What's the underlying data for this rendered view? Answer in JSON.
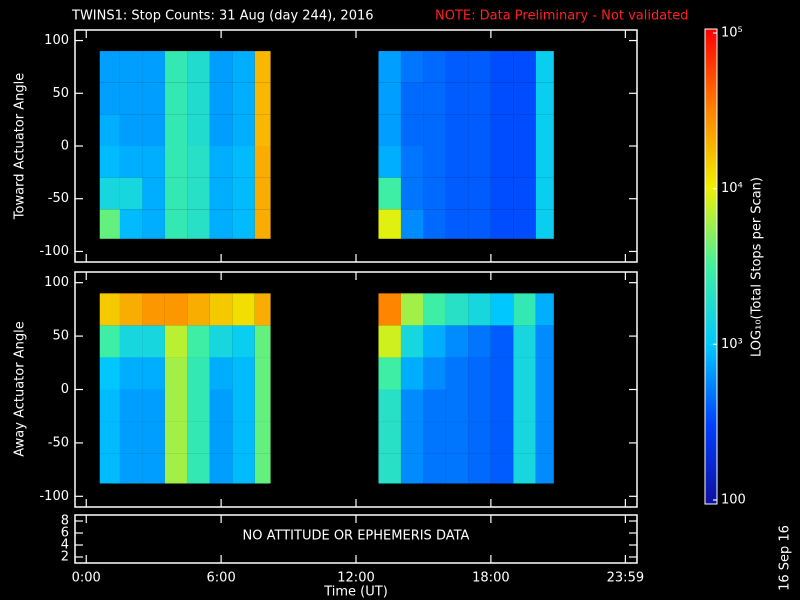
{
  "chart_data": [
    {
      "type": "heatmap",
      "title": "TWINS1: Stop Counts: 31 Aug (day 244), 2016",
      "note": "NOTE: Data Preliminary - Not validated",
      "ylabel": "Toward Actuator Angle",
      "ylim": [
        -110,
        110
      ],
      "yticks": [
        -100,
        -50,
        0,
        50,
        100
      ],
      "x_bins": [
        0.6,
        1.5,
        2.5,
        3.5,
        4.5,
        5.5,
        6.5,
        7.5,
        8.2,
        13,
        14,
        15,
        16,
        17,
        18,
        19,
        20,
        20.8
      ],
      "y_bins": [
        -88,
        -60,
        -30,
        0,
        30,
        60,
        90
      ],
      "values": [
        [
          4000,
          900,
          800,
          2500,
          2000,
          800,
          900,
          20000,
          null,
          9000,
          600,
          450,
          400,
          400,
          350,
          350,
          1200
        ],
        [
          1500,
          1500,
          800,
          2500,
          2000,
          800,
          900,
          20000,
          null,
          3000,
          500,
          450,
          400,
          400,
          350,
          350,
          1200
        ],
        [
          900,
          800,
          800,
          2500,
          2000,
          800,
          900,
          20000,
          null,
          800,
          500,
          450,
          400,
          400,
          350,
          350,
          1200
        ],
        [
          800,
          700,
          700,
          2500,
          1800,
          700,
          800,
          18000,
          null,
          700,
          450,
          450,
          400,
          400,
          350,
          350,
          1200
        ],
        [
          700,
          700,
          700,
          2500,
          1800,
          700,
          800,
          18000,
          null,
          700,
          450,
          450,
          400,
          400,
          350,
          350,
          1200
        ],
        [
          700,
          700,
          700,
          2500,
          1800,
          700,
          800,
          18000,
          null,
          700,
          500,
          450,
          400,
          400,
          350,
          350,
          1200
        ]
      ],
      "colorbar": {
        "label": "LOG₁₀(Total Stops per Scan)",
        "log": true,
        "lim": [
          100,
          100000
        ],
        "ticks": [
          100,
          {
            "value": 1000,
            "label": "10³"
          },
          {
            "value": 10000,
            "label": "10⁴"
          },
          {
            "value": 100000,
            "label": "10⁵"
          }
        ],
        "colormap": [
          "#1010a0",
          "#0040ff",
          "#00c8ff",
          "#40f0a0",
          "#f0f000",
          "#ff8000",
          "#ff0000"
        ]
      },
      "date_stamp": "16 Sep 16"
    },
    {
      "type": "heatmap",
      "ylabel": "Away Actuator Angle",
      "ylim": [
        -110,
        110
      ],
      "yticks": [
        -100,
        -50,
        0,
        50,
        100
      ],
      "x_bins": [
        0.6,
        1.5,
        2.5,
        3.5,
        4.5,
        5.5,
        6.5,
        7.5,
        8.2,
        13,
        14,
        15,
        16,
        17,
        18,
        19,
        20,
        20.8
      ],
      "y_bins": [
        -88,
        -60,
        -30,
        0,
        30,
        60,
        90
      ],
      "values": [
        [
          900,
          700,
          700,
          6000,
          2500,
          700,
          900,
          4000,
          null,
          2000,
          600,
          500,
          500,
          450,
          400,
          1500,
          600
        ],
        [
          900,
          700,
          700,
          6000,
          2500,
          700,
          900,
          4000,
          null,
          2000,
          600,
          500,
          500,
          450,
          400,
          1500,
          600
        ],
        [
          900,
          700,
          700,
          6000,
          2500,
          700,
          900,
          4000,
          null,
          2000,
          600,
          500,
          500,
          450,
          400,
          1500,
          600
        ],
        [
          1000,
          800,
          800,
          6000,
          2500,
          800,
          900,
          4000,
          null,
          3000,
          800,
          600,
          500,
          450,
          400,
          1500,
          600
        ],
        [
          3000,
          1500,
          1500,
          7000,
          3000,
          1500,
          1200,
          4000,
          null,
          8000,
          1500,
          800,
          600,
          500,
          400,
          1500,
          600
        ],
        [
          15000,
          20000,
          25000,
          25000,
          20000,
          15000,
          12000,
          20000,
          null,
          30000,
          6000,
          3000,
          2000,
          1500,
          1000,
          2500,
          800
        ]
      ]
    },
    {
      "type": "empty",
      "annotation": "NO ATTITUDE OR EPHEMERIS DATA",
      "ylim": [
        1,
        9
      ],
      "yticks": [
        2,
        4,
        6,
        8
      ],
      "xlabel": "Time (UT)",
      "xlim": [
        -0.5,
        24.5
      ],
      "xticks": [
        {
          "value": 0,
          "label": "0:00"
        },
        {
          "value": 6,
          "label": "6:00"
        },
        {
          "value": 12,
          "label": "12:00"
        },
        {
          "value": 18,
          "label": "18:00"
        },
        {
          "value": 23.983,
          "label": "23:59"
        }
      ]
    }
  ]
}
